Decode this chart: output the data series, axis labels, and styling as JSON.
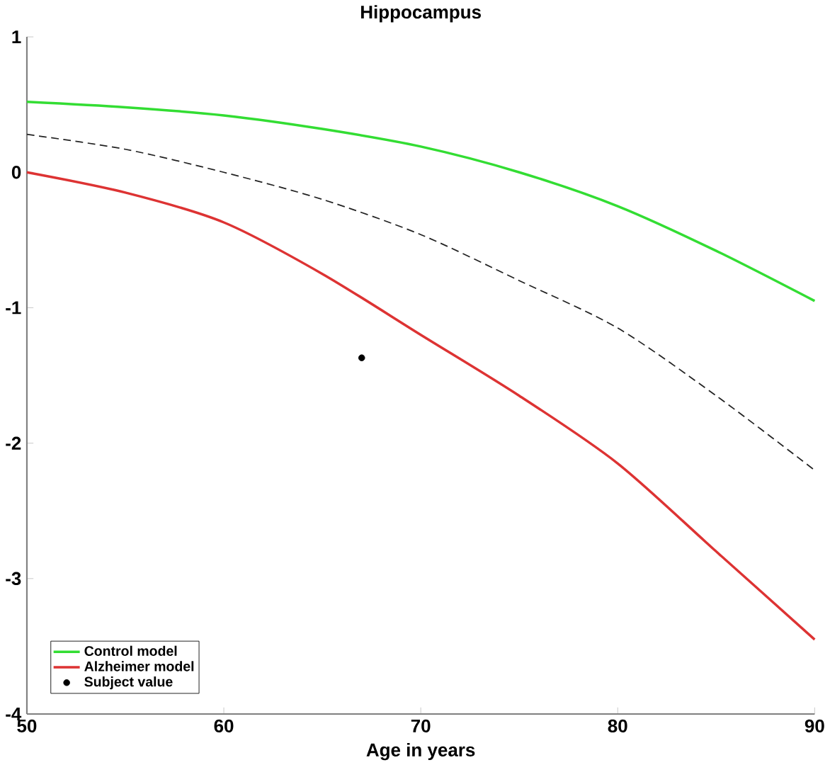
{
  "chart_data": {
    "type": "line",
    "title": "Hippocampus",
    "xlabel": "Age in years",
    "x": [
      50,
      55,
      60,
      65,
      70,
      75,
      80,
      85,
      90
    ],
    "series": [
      {
        "name": "Control model",
        "color": "#33dd33",
        "values": [
          0.52,
          0.48,
          0.42,
          0.32,
          0.19,
          0.0,
          -0.25,
          -0.58,
          -0.95
        ]
      },
      {
        "name": "Alzheimer model",
        "color": "#dd3333",
        "values": [
          0.0,
          -0.15,
          -0.37,
          -0.75,
          -1.2,
          -1.65,
          -2.15,
          -2.8,
          -3.45
        ]
      },
      {
        "color": "#222222",
        "line_style": "dashed",
        "values": [
          0.28,
          0.17,
          0.0,
          -0.2,
          -0.46,
          -0.8,
          -1.15,
          -1.65,
          -2.2
        ]
      },
      {
        "name": "Subject value",
        "type": "scatter",
        "marker": "circle",
        "color": "#000000",
        "x": [
          67
        ],
        "values": [
          -1.37
        ]
      }
    ],
    "xlim": [
      50,
      90
    ],
    "ylim": [
      -4,
      1
    ],
    "xticks": [
      50,
      60,
      70,
      80,
      90
    ],
    "yticks": [
      -4,
      -3,
      -2,
      -1,
      0,
      1
    ],
    "grid": false,
    "legend": "bottom left"
  }
}
